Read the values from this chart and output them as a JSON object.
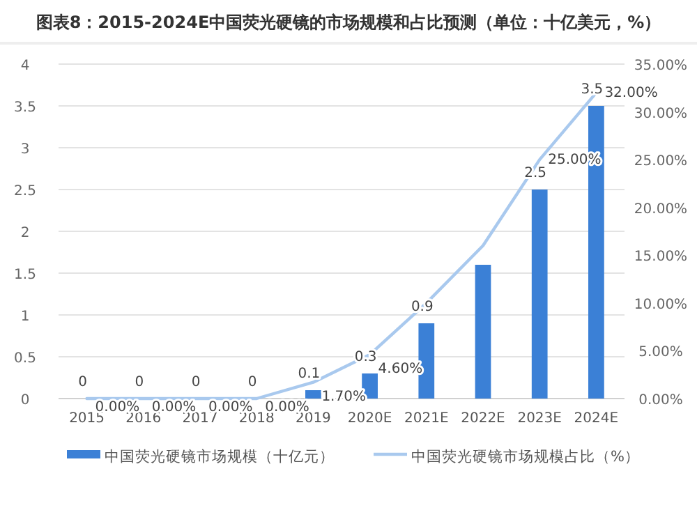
{
  "chart_data": {
    "type": "bar",
    "title": "图表8：2015-2024E中国荧光硬镜的市场规模和占比预测（单位：十亿美元，%）",
    "categories": [
      "2015",
      "2016",
      "2017",
      "2018",
      "2019",
      "2020E",
      "2021E",
      "2022E",
      "2023E",
      "2024E"
    ],
    "series": [
      {
        "name": "中国荧光硬镜市场规模（十亿元）",
        "color": "#3b80d6",
        "values": [
          0,
          0,
          0,
          0,
          0.1,
          0.3,
          0.9,
          1.6,
          2.5,
          3.5
        ],
        "value_labels": [
          "0",
          "0",
          "0",
          "0",
          "0.1",
          "0.3",
          "0.9",
          null,
          "2.5",
          "3.5"
        ]
      },
      {
        "name": "中国荧光硬镜市场规模占比（%）",
        "type": "line",
        "axis": "y2",
        "color": "#a9c9ee",
        "values": [
          0,
          0,
          0,
          0,
          1.7,
          4.6,
          10,
          16,
          25,
          32
        ],
        "value_labels": [
          "0.00%",
          "0.00%",
          "0.00%",
          "0.00%",
          "1.70%",
          "4.60%",
          null,
          null,
          "25.00%",
          "32.00%"
        ]
      }
    ],
    "ylim": [
      0,
      4
    ],
    "yticks": [
      0,
      0.5,
      1,
      1.5,
      2,
      2.5,
      3,
      3.5,
      4
    ],
    "y2lim": [
      0,
      35
    ],
    "y2ticks": [
      {
        "value": 0,
        "label": "0.00%"
      },
      {
        "value": 5,
        "label": "5.00%"
      },
      {
        "value": 10,
        "label": "10.00%"
      },
      {
        "value": 15,
        "label": "15.00%"
      },
      {
        "value": 20,
        "label": "20.00%"
      },
      {
        "value": 25,
        "label": "25.00%"
      },
      {
        "value": 30,
        "label": "30.00%"
      },
      {
        "value": 35,
        "label": "35.00%"
      }
    ],
    "grid": "y",
    "legend": "bottom"
  }
}
